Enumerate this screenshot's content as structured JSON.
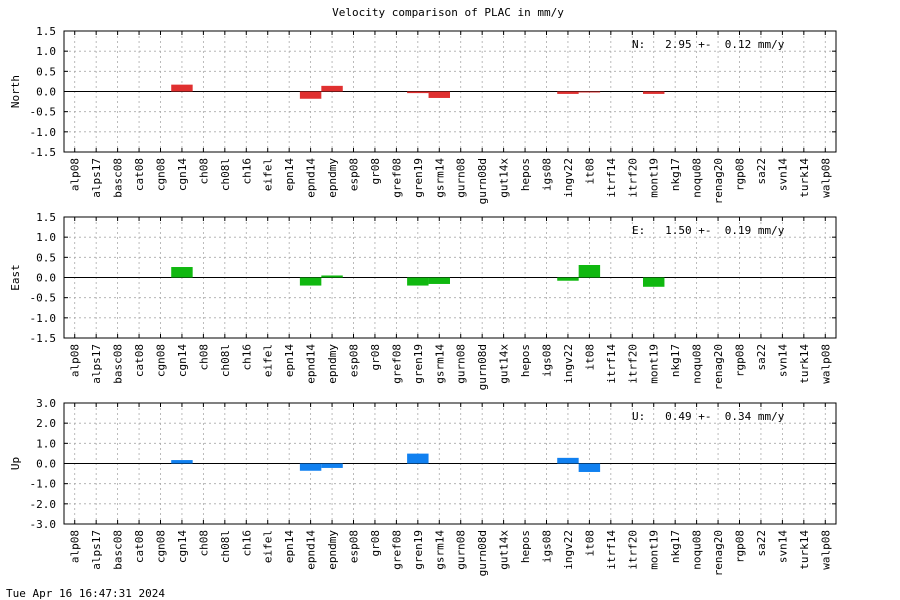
{
  "title": "Velocity comparison of PLAC in mm/y",
  "timestamp": "Tue Apr 16 16:47:31 2024",
  "chart_data": [
    {
      "type": "bar",
      "ylabel": "North",
      "ylim": [
        -1.5,
        1.5
      ],
      "yticks": [
        -1.5,
        -1.0,
        -0.5,
        0.0,
        0.5,
        1.0,
        1.5
      ],
      "grid": true,
      "color": "#e03030",
      "annotation": "N:   2.95 +-  0.12 mm/y",
      "categories": [
        "alp08",
        "alps17",
        "basc08",
        "cat08",
        "cgn08",
        "cgn14",
        "ch08",
        "ch08l",
        "ch16",
        "eifel",
        "epn14",
        "epnd14",
        "epndmy",
        "esp08",
        "gr08",
        "gref08",
        "gren19",
        "gsrm14",
        "gurn08",
        "gurn08d",
        "gut14x",
        "hepos",
        "igs08",
        "ingv22",
        "it08",
        "itrf14",
        "itrf20",
        "mont19",
        "nkg17",
        "noqu08",
        "renag20",
        "rgp08",
        "sa22",
        "svn14",
        "turk14",
        "walp08"
      ],
      "values": [
        null,
        null,
        null,
        null,
        null,
        0.17,
        null,
        null,
        null,
        null,
        null,
        -0.18,
        0.14,
        null,
        null,
        null,
        -0.04,
        -0.16,
        null,
        null,
        null,
        null,
        null,
        -0.06,
        -0.02,
        null,
        null,
        -0.06,
        null,
        null,
        null,
        null,
        null,
        null,
        null,
        null
      ]
    },
    {
      "type": "bar",
      "ylabel": "East",
      "ylim": [
        -1.5,
        1.5
      ],
      "yticks": [
        -1.5,
        -1.0,
        -0.5,
        0.0,
        0.5,
        1.0,
        1.5
      ],
      "grid": true,
      "color": "#10b810",
      "annotation": "E:   1.50 +-  0.19 mm/y",
      "categories": [
        "alp08",
        "alps17",
        "basc08",
        "cat08",
        "cgn08",
        "cgn14",
        "ch08",
        "ch08l",
        "ch16",
        "eifel",
        "epn14",
        "epnd14",
        "epndmy",
        "esp08",
        "gr08",
        "gref08",
        "gren19",
        "gsrm14",
        "gurn08",
        "gurn08d",
        "gut14x",
        "hepos",
        "igs08",
        "ingv22",
        "it08",
        "itrf14",
        "itrf20",
        "mont19",
        "nkg17",
        "noqu08",
        "renag20",
        "rgp08",
        "sa22",
        "svn14",
        "turk14",
        "walp08"
      ],
      "values": [
        null,
        null,
        null,
        null,
        null,
        0.26,
        null,
        null,
        null,
        null,
        null,
        -0.2,
        0.05,
        null,
        null,
        null,
        -0.2,
        -0.16,
        null,
        null,
        null,
        null,
        null,
        -0.08,
        0.31,
        null,
        null,
        -0.23,
        null,
        null,
        null,
        null,
        null,
        null,
        null,
        null
      ]
    },
    {
      "type": "bar",
      "ylabel": "Up",
      "ylim": [
        -3.0,
        3.0
      ],
      "yticks": [
        -3.0,
        -2.0,
        -1.0,
        0.0,
        1.0,
        2.0,
        3.0
      ],
      "grid": true,
      "color": "#1080f0",
      "annotation": "U:   0.49 +-  0.34 mm/y",
      "categories": [
        "alp08",
        "alps17",
        "basc08",
        "cat08",
        "cgn08",
        "cgn14",
        "ch08",
        "ch08l",
        "ch16",
        "eifel",
        "epn14",
        "epnd14",
        "epndmy",
        "esp08",
        "gr08",
        "gref08",
        "gren19",
        "gsrm14",
        "gurn08",
        "gurn08d",
        "gut14x",
        "hepos",
        "igs08",
        "ingv22",
        "it08",
        "itrf14",
        "itrf20",
        "mont19",
        "nkg17",
        "noqu08",
        "renag20",
        "rgp08",
        "sa22",
        "svn14",
        "turk14",
        "walp08"
      ],
      "values": [
        null,
        null,
        null,
        null,
        null,
        0.17,
        null,
        null,
        null,
        null,
        null,
        -0.36,
        -0.22,
        null,
        null,
        null,
        0.49,
        null,
        null,
        null,
        null,
        null,
        null,
        0.28,
        -0.42,
        null,
        null,
        null,
        null,
        null,
        null,
        null,
        null,
        null,
        null,
        null
      ]
    }
  ]
}
